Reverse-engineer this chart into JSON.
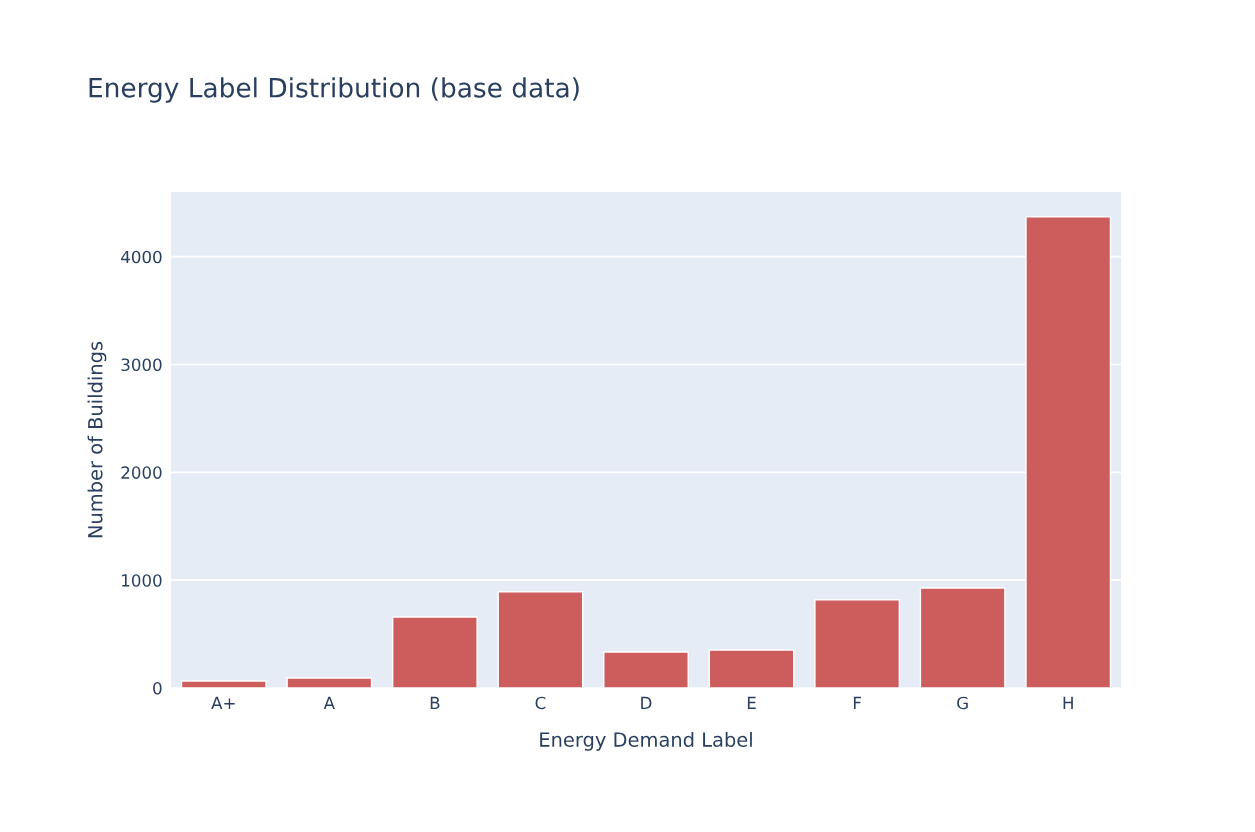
{
  "chart_data": {
    "type": "bar",
    "title": "Energy Label Distribution (base data)",
    "xlabel": "Energy Demand Label",
    "ylabel": "Number of Buildings",
    "categories": [
      "A+",
      "A",
      "B",
      "C",
      "D",
      "E",
      "F",
      "G",
      "H"
    ],
    "values": [
      65,
      93,
      659,
      891,
      334,
      353,
      817,
      928,
      4371
    ],
    "color": "#cd5c5c",
    "ylim": [
      0,
      4600
    ],
    "yticks": [
      0,
      1000,
      2000,
      3000,
      4000
    ],
    "grid": "y"
  }
}
